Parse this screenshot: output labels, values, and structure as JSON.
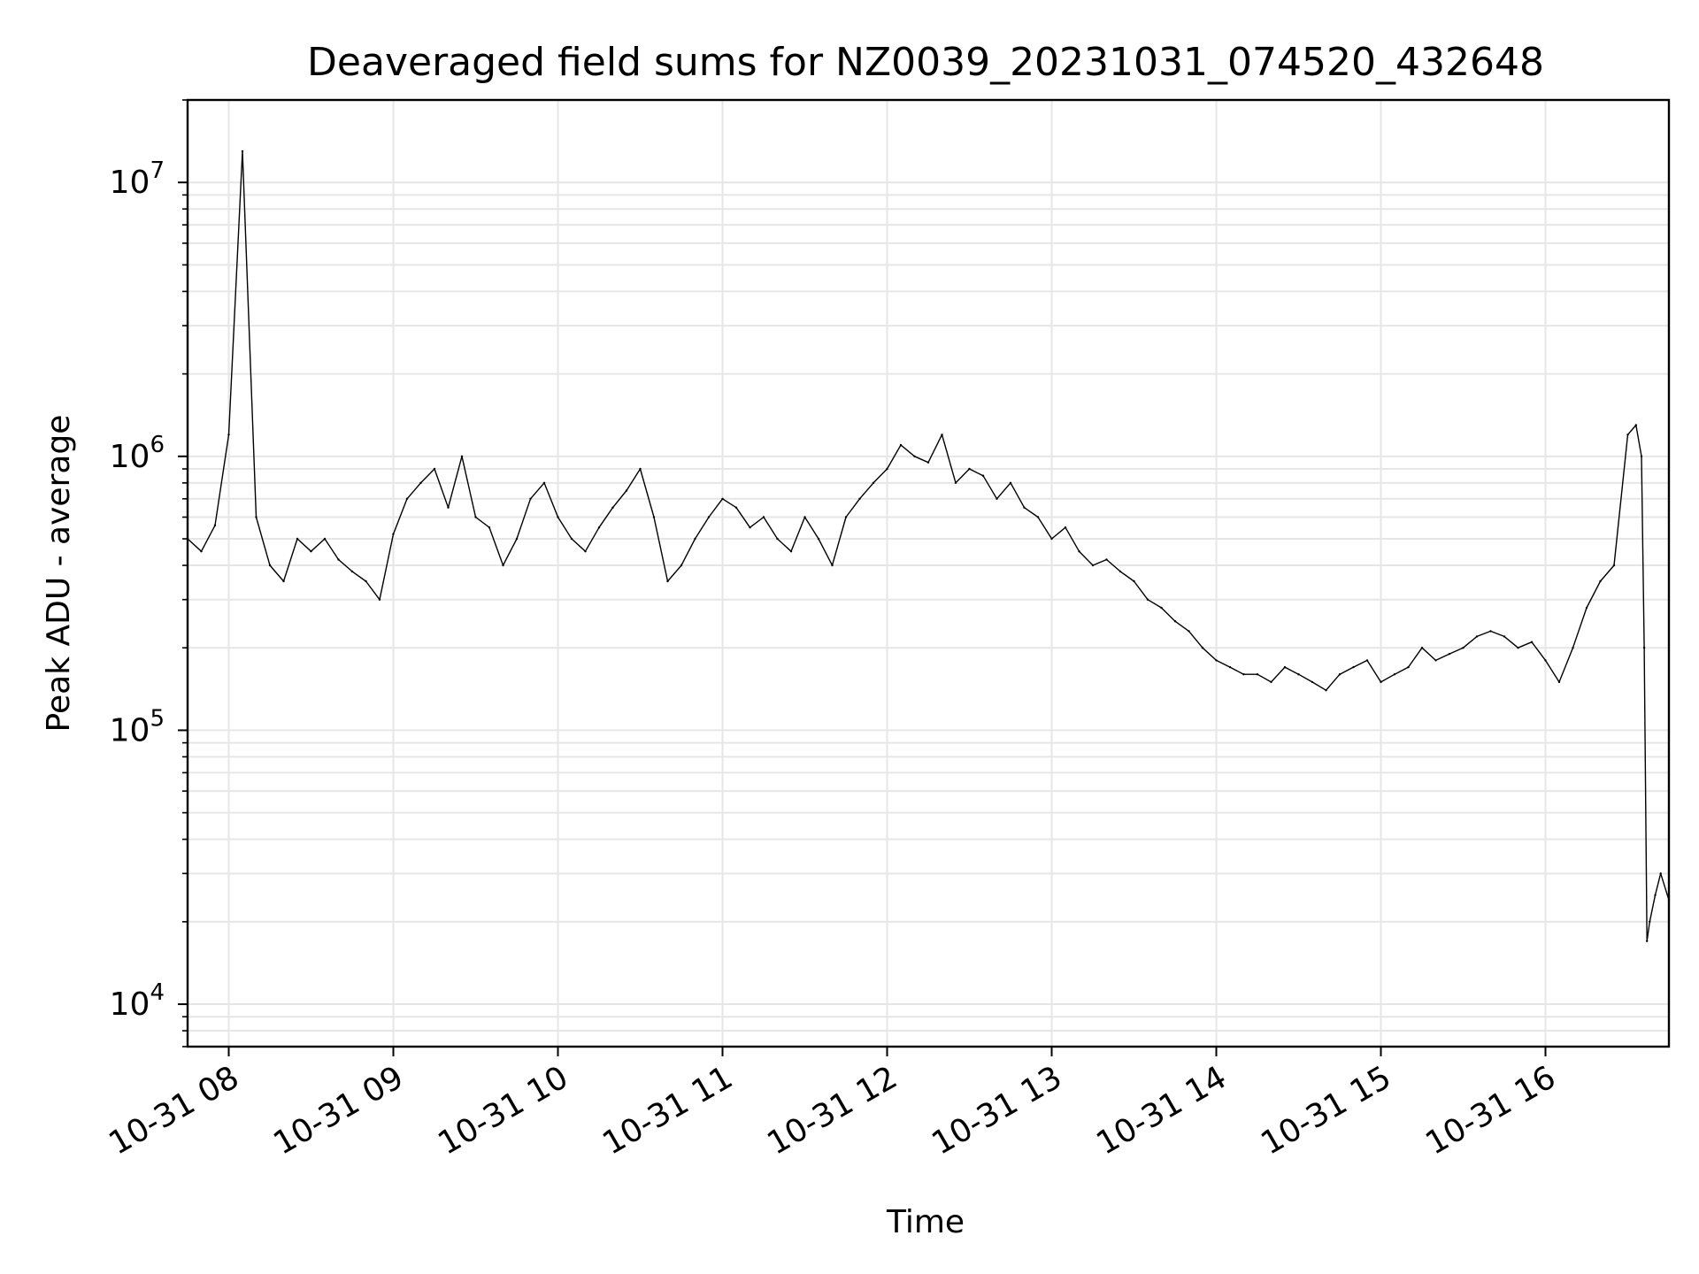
{
  "chart_data": {
    "type": "line",
    "title": "Deaveraged field sums for NZ0039_20231031_074520_432648",
    "xlabel": "Time",
    "ylabel": "Peak ADU - average",
    "yscale": "log",
    "ylim": [
      7000,
      20000000
    ],
    "xlim": [
      "2023-10-31 07:45",
      "2023-10-31 16:45"
    ],
    "grid": true,
    "x_ticks": [
      {
        "value": "2023-10-31 08:00",
        "label": "10-31 08"
      },
      {
        "value": "2023-10-31 09:00",
        "label": "10-31 09"
      },
      {
        "value": "2023-10-31 10:00",
        "label": "10-31 10"
      },
      {
        "value": "2023-10-31 11:00",
        "label": "10-31 11"
      },
      {
        "value": "2023-10-31 12:00",
        "label": "10-31 12"
      },
      {
        "value": "2023-10-31 13:00",
        "label": "10-31 13"
      },
      {
        "value": "2023-10-31 14:00",
        "label": "10-31 14"
      },
      {
        "value": "2023-10-31 15:00",
        "label": "10-31 15"
      },
      {
        "value": "2023-10-31 16:00",
        "label": "10-31 16"
      }
    ],
    "y_ticks": [
      {
        "value": 10000,
        "base": "10",
        "exp": "4"
      },
      {
        "value": 100000,
        "base": "10",
        "exp": "5"
      },
      {
        "value": 1000000,
        "base": "10",
        "exp": "6"
      },
      {
        "value": 10000000,
        "base": "10",
        "exp": "7"
      }
    ],
    "series": [
      {
        "color": "#000000",
        "x": [
          "2023-10-31 07:45",
          "2023-10-31 07:50",
          "2023-10-31 07:55",
          "2023-10-31 08:00",
          "2023-10-31 08:05",
          "2023-10-31 08:10",
          "2023-10-31 08:15",
          "2023-10-31 08:20",
          "2023-10-31 08:25",
          "2023-10-31 08:30",
          "2023-10-31 08:35",
          "2023-10-31 08:40",
          "2023-10-31 08:45",
          "2023-10-31 08:50",
          "2023-10-31 08:55",
          "2023-10-31 09:00",
          "2023-10-31 09:05",
          "2023-10-31 09:10",
          "2023-10-31 09:15",
          "2023-10-31 09:20",
          "2023-10-31 09:25",
          "2023-10-31 09:30",
          "2023-10-31 09:35",
          "2023-10-31 09:40",
          "2023-10-31 09:45",
          "2023-10-31 09:50",
          "2023-10-31 09:55",
          "2023-10-31 10:00",
          "2023-10-31 10:05",
          "2023-10-31 10:10",
          "2023-10-31 10:15",
          "2023-10-31 10:20",
          "2023-10-31 10:25",
          "2023-10-31 10:30",
          "2023-10-31 10:35",
          "2023-10-31 10:40",
          "2023-10-31 10:45",
          "2023-10-31 10:50",
          "2023-10-31 10:55",
          "2023-10-31 11:00",
          "2023-10-31 11:05",
          "2023-10-31 11:10",
          "2023-10-31 11:15",
          "2023-10-31 11:20",
          "2023-10-31 11:25",
          "2023-10-31 11:30",
          "2023-10-31 11:35",
          "2023-10-31 11:40",
          "2023-10-31 11:45",
          "2023-10-31 11:50",
          "2023-10-31 11:55",
          "2023-10-31 12:00",
          "2023-10-31 12:05",
          "2023-10-31 12:10",
          "2023-10-31 12:15",
          "2023-10-31 12:20",
          "2023-10-31 12:25",
          "2023-10-31 12:30",
          "2023-10-31 12:35",
          "2023-10-31 12:40",
          "2023-10-31 12:45",
          "2023-10-31 12:50",
          "2023-10-31 12:55",
          "2023-10-31 13:00",
          "2023-10-31 13:05",
          "2023-10-31 13:10",
          "2023-10-31 13:15",
          "2023-10-31 13:20",
          "2023-10-31 13:25",
          "2023-10-31 13:30",
          "2023-10-31 13:35",
          "2023-10-31 13:40",
          "2023-10-31 13:45",
          "2023-10-31 13:50",
          "2023-10-31 13:55",
          "2023-10-31 14:00",
          "2023-10-31 14:05",
          "2023-10-31 14:10",
          "2023-10-31 14:15",
          "2023-10-31 14:20",
          "2023-10-31 14:25",
          "2023-10-31 14:30",
          "2023-10-31 14:35",
          "2023-10-31 14:40",
          "2023-10-31 14:45",
          "2023-10-31 14:50",
          "2023-10-31 14:55",
          "2023-10-31 15:00",
          "2023-10-31 15:05",
          "2023-10-31 15:10",
          "2023-10-31 15:15",
          "2023-10-31 15:20",
          "2023-10-31 15:25",
          "2023-10-31 15:30",
          "2023-10-31 15:35",
          "2023-10-31 15:40",
          "2023-10-31 15:45",
          "2023-10-31 15:50",
          "2023-10-31 15:55",
          "2023-10-31 16:00",
          "2023-10-31 16:05",
          "2023-10-31 16:10",
          "2023-10-31 16:15",
          "2023-10-31 16:20",
          "2023-10-31 16:25",
          "2023-10-31 16:30",
          "2023-10-31 16:33",
          "2023-10-31 16:35",
          "2023-10-31 16:36",
          "2023-10-31 16:37",
          "2023-10-31 16:38",
          "2023-10-31 16:40",
          "2023-10-31 16:42",
          "2023-10-31 16:45"
        ],
        "y": [
          500000,
          450000,
          560000,
          1200000,
          13000000,
          600000,
          400000,
          350000,
          500000,
          450000,
          500000,
          420000,
          380000,
          350000,
          300000,
          520000,
          700000,
          800000,
          900000,
          650000,
          1000000,
          600000,
          550000,
          400000,
          500000,
          700000,
          800000,
          600000,
          500000,
          450000,
          550000,
          650000,
          750000,
          900000,
          600000,
          350000,
          400000,
          500000,
          600000,
          700000,
          650000,
          550000,
          600000,
          500000,
          450000,
          600000,
          500000,
          400000,
          600000,
          700000,
          800000,
          900000,
          1100000,
          1000000,
          950000,
          1200000,
          800000,
          900000,
          850000,
          700000,
          800000,
          650000,
          600000,
          500000,
          550000,
          450000,
          400000,
          420000,
          380000,
          350000,
          300000,
          280000,
          250000,
          230000,
          200000,
          180000,
          170000,
          160000,
          160000,
          150000,
          170000,
          160000,
          150000,
          140000,
          160000,
          170000,
          180000,
          150000,
          160000,
          170000,
          200000,
          180000,
          190000,
          200000,
          220000,
          230000,
          220000,
          200000,
          210000,
          180000,
          150000,
          200000,
          280000,
          350000,
          400000,
          1200000,
          1300000,
          1000000,
          200000,
          17000,
          20000,
          25000,
          30000,
          24000
        ]
      }
    ]
  }
}
